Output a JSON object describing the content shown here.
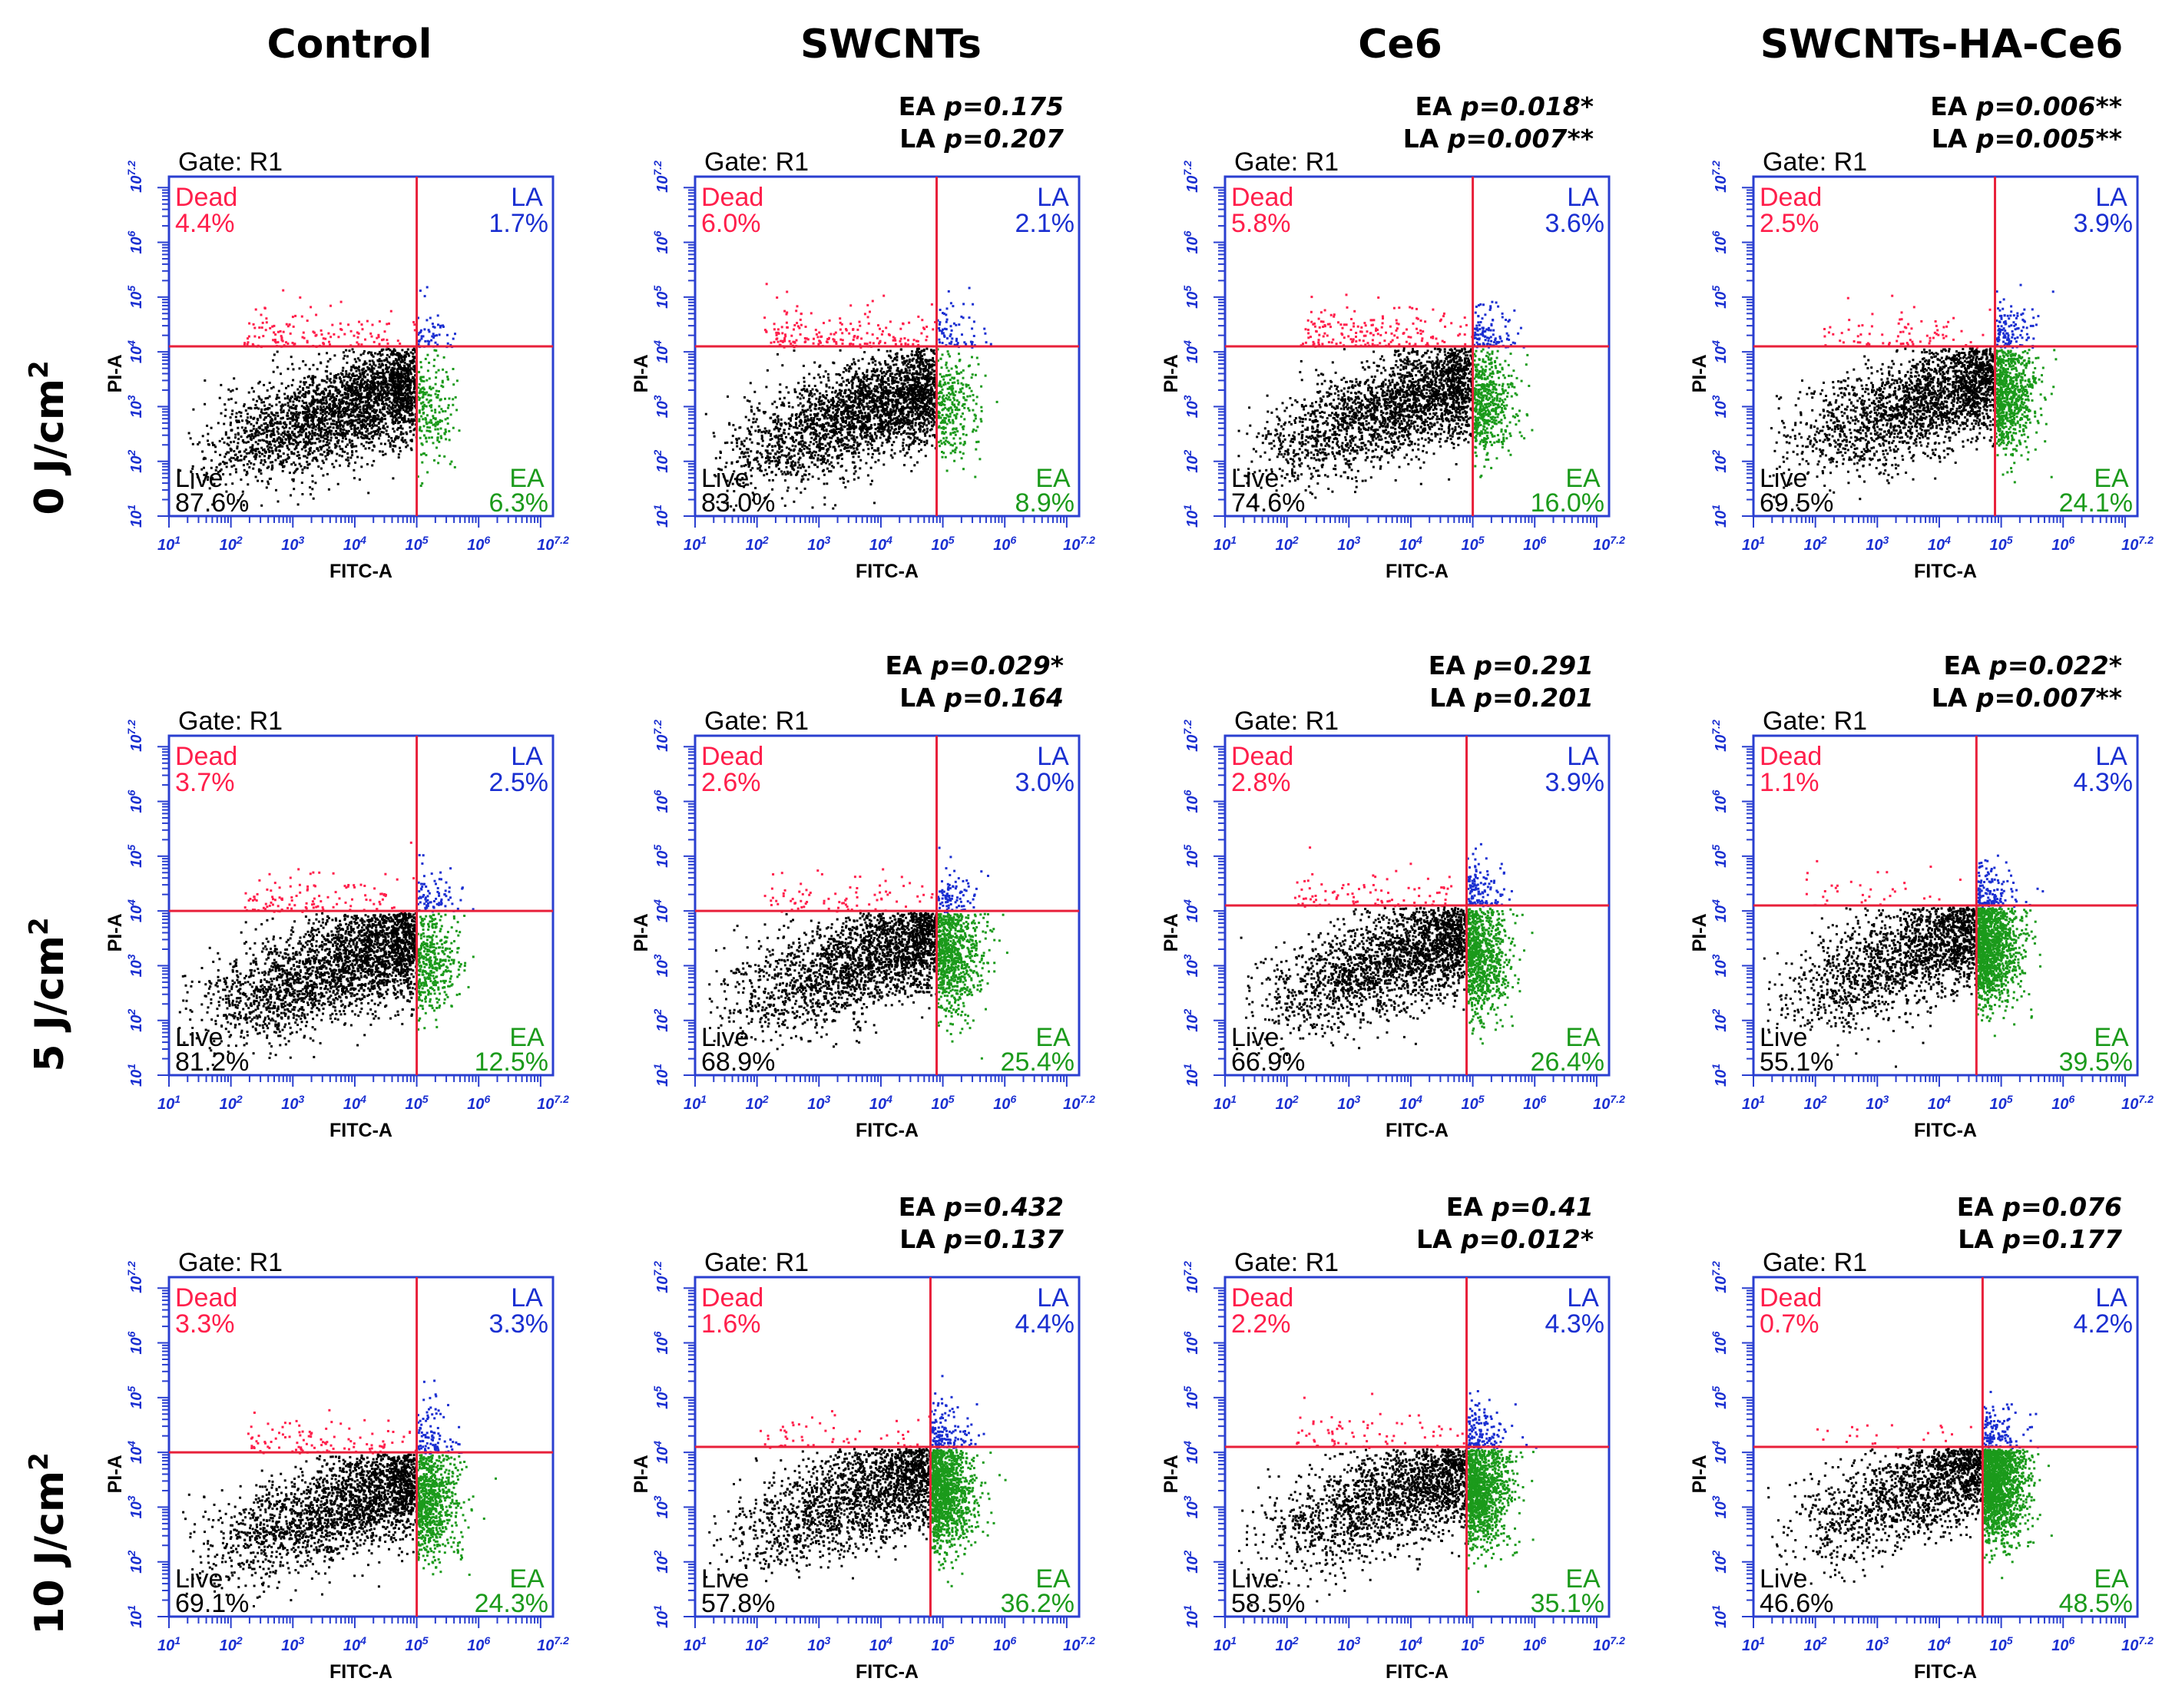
{
  "column_titles": [
    "Control",
    "SWCNTs",
    "Ce6",
    "SWCNTs-HA-Ce6"
  ],
  "row_labels": [
    {
      "base": "0 J/cm",
      "sup": "2"
    },
    {
      "base": "5 J/cm",
      "sup": "2"
    },
    {
      "base": "10 J/cm",
      "sup": "2"
    }
  ],
  "colors": {
    "dead": "#ff1f4b",
    "late": "#1a2fd1",
    "early": "#1b9a1b",
    "live": "#000000",
    "frame": "#2a3fd0",
    "gate_line": "#e8203a"
  },
  "chart_data": {
    "type": "scatter",
    "title": "",
    "xlabel": "FITC-A",
    "ylabel": "PI-A",
    "gate_text": "Gate: R1",
    "axis_scale": "log10",
    "xlim": [
      1,
      7.2
    ],
    "ylim": [
      1,
      7.2
    ],
    "x_ticks": [
      "10^1",
      "10^2",
      "10^3",
      "10^4",
      "10^5",
      "10^6",
      "10^7.2"
    ],
    "y_ticks": [
      "10^1",
      "10^2",
      "10^3",
      "10^4",
      "10^5",
      "10^6",
      "10^7.2"
    ],
    "quadrant_names": {
      "dead": "Dead",
      "late": "LA",
      "live": "Live",
      "early": "EA"
    },
    "panels": [
      {
        "row": 0,
        "col": 0,
        "group": "Control",
        "dose": "0 J/cm2",
        "dead": "4.4%",
        "late": "1.7%",
        "live": "87.6%",
        "early": "6.3%",
        "ea_p": null,
        "la_p": null,
        "gate_x": 5.0,
        "gate_y": 4.1,
        "cx": 4.3,
        "cy": 2.9
      },
      {
        "row": 0,
        "col": 1,
        "group": "SWCNTs",
        "dose": "0 J/cm2",
        "dead": "6.0%",
        "late": "2.1%",
        "live": "83.0%",
        "early": "8.9%",
        "ea_p": "p=0.175",
        "la_p": "p=0.207",
        "gate_x": 4.9,
        "gate_y": 4.1,
        "cx": 4.2,
        "cy": 2.9
      },
      {
        "row": 0,
        "col": 2,
        "group": "Ce6",
        "dose": "0 J/cm2",
        "dead": "5.8%",
        "late": "3.6%",
        "live": "74.6%",
        "early": "16.0%",
        "ea_p": "p=0.018*",
        "la_p": "p=0.007**",
        "gate_x": 5.0,
        "gate_y": 4.1,
        "cx": 4.4,
        "cy": 3.0
      },
      {
        "row": 0,
        "col": 3,
        "group": "SWCNTs-HA-Ce6",
        "dose": "0 J/cm2",
        "dead": "2.5%",
        "late": "3.9%",
        "live": "69.5%",
        "early": "24.1%",
        "ea_p": "p=0.006**",
        "la_p": "p=0.005**",
        "gate_x": 4.9,
        "gate_y": 4.1,
        "cx": 4.5,
        "cy": 3.1
      },
      {
        "row": 1,
        "col": 0,
        "group": "Control",
        "dose": "5 J/cm2",
        "dead": "3.7%",
        "late": "2.5%",
        "live": "81.2%",
        "early": "12.5%",
        "ea_p": null,
        "la_p": null,
        "gate_x": 5.0,
        "gate_y": 4.0,
        "cx": 4.4,
        "cy": 3.0
      },
      {
        "row": 1,
        "col": 1,
        "group": "SWCNTs",
        "dose": "5 J/cm2",
        "dead": "2.6%",
        "late": "3.0%",
        "live": "68.9%",
        "early": "25.4%",
        "ea_p": "p=0.029*",
        "la_p": "p=0.164",
        "gate_x": 4.9,
        "gate_y": 4.0,
        "cx": 4.5,
        "cy": 3.1
      },
      {
        "row": 1,
        "col": 2,
        "group": "Ce6",
        "dose": "5 J/cm2",
        "dead": "2.8%",
        "late": "3.9%",
        "live": "66.9%",
        "early": "26.4%",
        "ea_p": "p=0.291",
        "la_p": "p=0.201",
        "gate_x": 4.9,
        "gate_y": 4.1,
        "cx": 4.5,
        "cy": 3.1
      },
      {
        "row": 1,
        "col": 3,
        "group": "SWCNTs-HA-Ce6",
        "dose": "5 J/cm2",
        "dead": "1.1%",
        "late": "4.3%",
        "live": "55.1%",
        "early": "39.5%",
        "ea_p": "p=0.022*",
        "la_p": "p=0.007**",
        "gate_x": 4.6,
        "gate_y": 4.1,
        "cx": 4.5,
        "cy": 3.2
      },
      {
        "row": 2,
        "col": 0,
        "group": "Control",
        "dose": "10 J/cm2",
        "dead": "3.3%",
        "late": "3.3%",
        "live": "69.1%",
        "early": "24.3%",
        "ea_p": null,
        "la_p": null,
        "gate_x": 5.0,
        "gate_y": 4.0,
        "cx": 4.5,
        "cy": 3.0
      },
      {
        "row": 2,
        "col": 1,
        "group": "SWCNTs",
        "dose": "10 J/cm2",
        "dead": "1.6%",
        "late": "4.4%",
        "live": "57.8%",
        "early": "36.2%",
        "ea_p": "p=0.432",
        "la_p": "p=0.137",
        "gate_x": 4.8,
        "gate_y": 4.1,
        "cx": 4.6,
        "cy": 3.2
      },
      {
        "row": 2,
        "col": 2,
        "group": "Ce6",
        "dose": "10 J/cm2",
        "dead": "2.2%",
        "late": "4.3%",
        "live": "58.5%",
        "early": "35.1%",
        "ea_p": "p=0.41",
        "la_p": "p=0.012*",
        "gate_x": 4.9,
        "gate_y": 4.1,
        "cx": 4.6,
        "cy": 3.2
      },
      {
        "row": 2,
        "col": 3,
        "group": "SWCNTs-HA-Ce6",
        "dose": "10 J/cm2",
        "dead": "0.7%",
        "late": "4.2%",
        "live": "46.6%",
        "early": "48.5%",
        "ea_p": "p=0.076",
        "la_p": "p=0.177",
        "gate_x": 4.7,
        "gate_y": 4.1,
        "cx": 4.6,
        "cy": 3.3
      }
    ]
  }
}
